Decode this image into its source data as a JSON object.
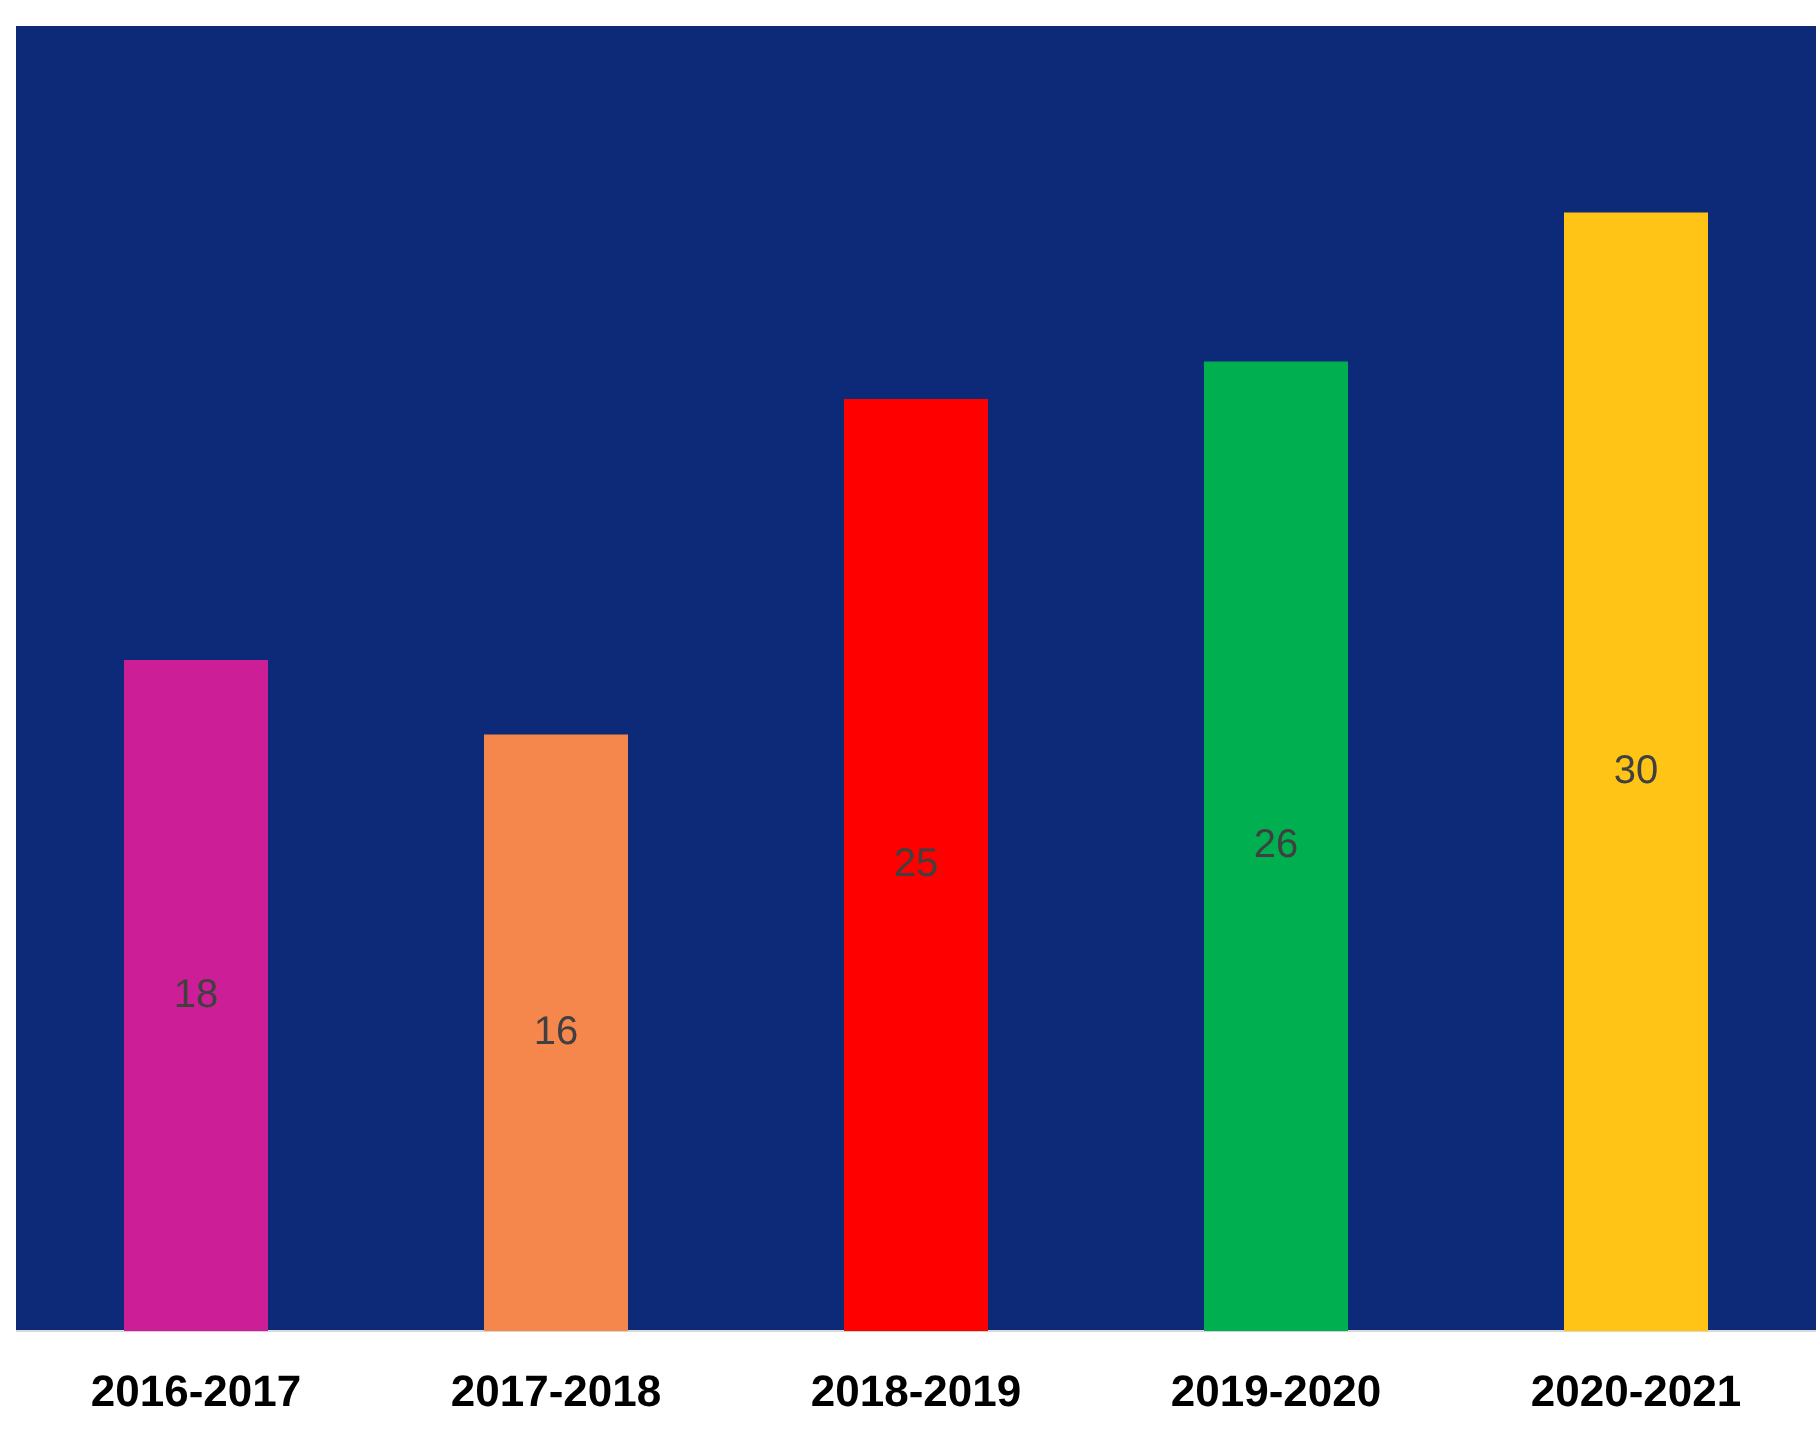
{
  "chart_data": {
    "type": "bar",
    "categories": [
      "2016-2017",
      "2017-2018",
      "2018-2019",
      "2019-2020",
      "2020-2021"
    ],
    "values": [
      18,
      16,
      25,
      26,
      30
    ],
    "colors": [
      "#cc1f97",
      "#f5874c",
      "#ff0000",
      "#00b050",
      "#ffc416"
    ],
    "ylim": [
      0,
      35
    ],
    "data_labels": true,
    "grid": false,
    "legend": false,
    "tick_labels": "x"
  }
}
